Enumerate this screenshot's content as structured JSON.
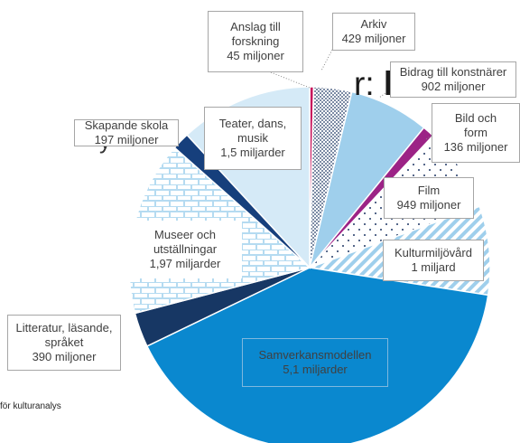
{
  "chart_data": {
    "type": "pie",
    "title_prefix": "r:",
    "title_bold": "kultur",
    "side_text": "y",
    "source": "för kulturanalys",
    "categories": [
      "Anslag till\nforskning",
      "Arkiv",
      "Bidrag till konstnärer",
      "Bild och\nform",
      "Film",
      "Kulturmiljövård",
      "Samverkansmodellen",
      "Litteratur, läsande,\nspråket",
      "Museer och\nutställningar",
      "Skapande skola",
      "Teater, dans,\nmusik"
    ],
    "values": [
      45,
      429,
      902,
      136,
      949,
      1000,
      5100,
      390,
      1970,
      197,
      1500
    ],
    "value_labels": [
      "45 miljoner",
      "429 miljoner",
      "902 miljoner",
      "136 miljoner",
      "949 miljoner",
      "1 miljard",
      "5,1 miljarder",
      "390 miljoner",
      "1,97 miljarder",
      "197 miljoner",
      "1,5 miljarder"
    ],
    "colors": [
      "#c8175d",
      "#1f3864",
      "#9fcfec",
      "#9c2386",
      "#1f3864",
      "#9fcfec",
      "#0a88cf",
      "#173764",
      "#b5dbf1",
      "#163f7c",
      "#d5eaf7"
    ],
    "patterns": [
      "solid",
      "dense-dots",
      "solid",
      "solid",
      "sparse-dots",
      "hatch",
      "solid",
      "solid",
      "brick",
      "solid",
      "solid"
    ]
  }
}
